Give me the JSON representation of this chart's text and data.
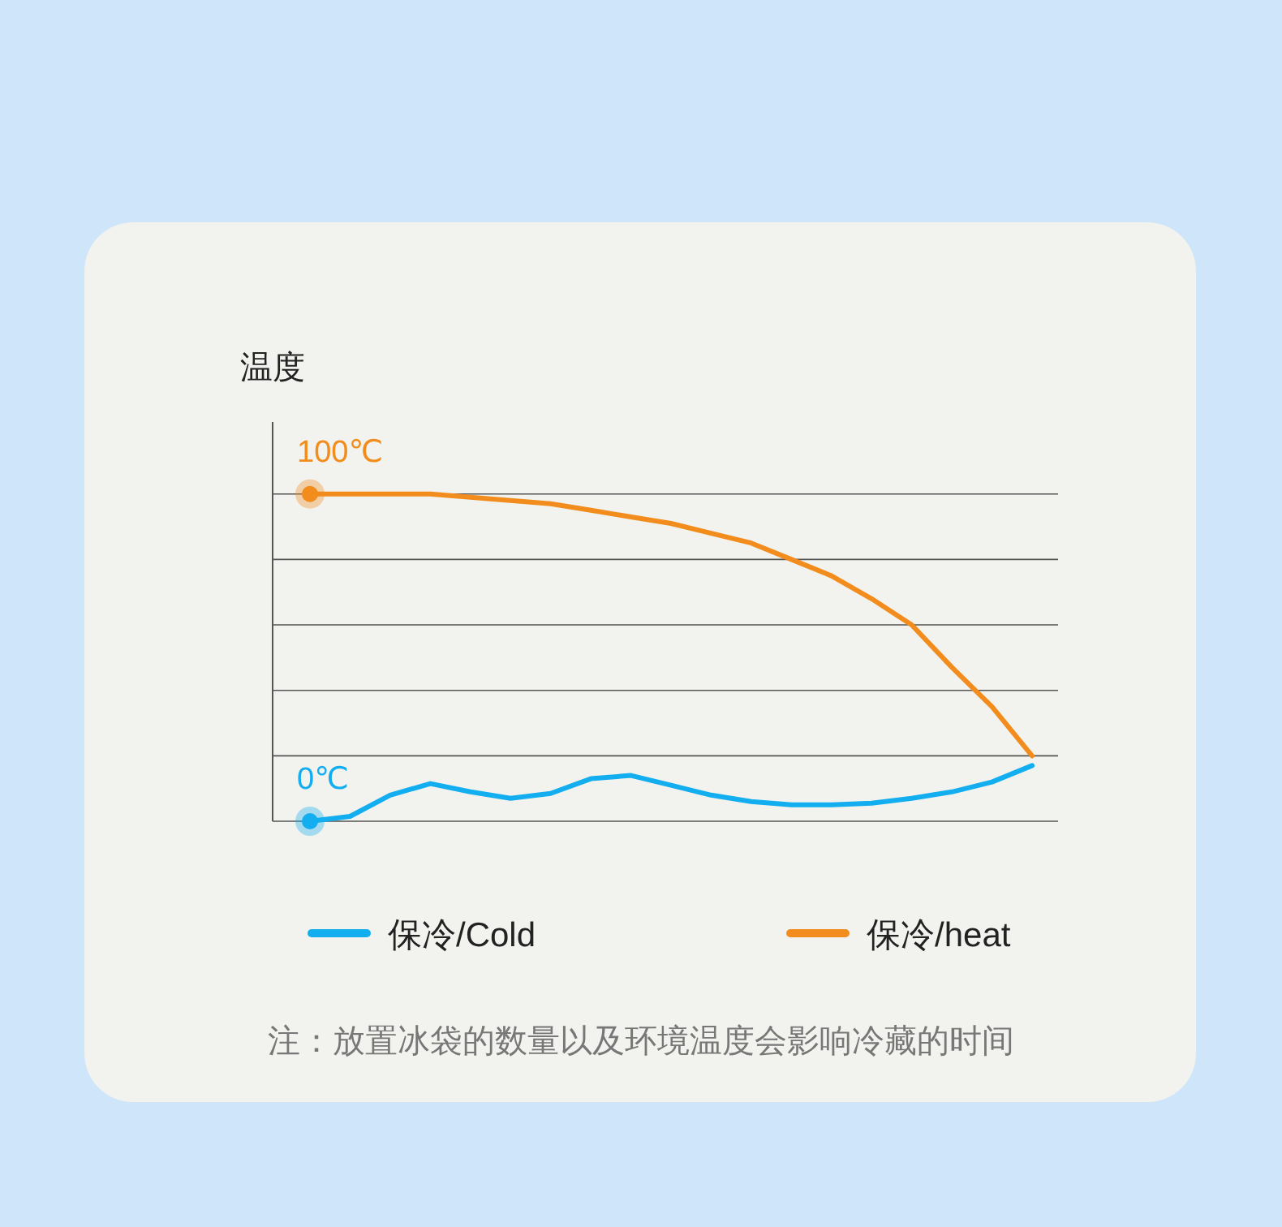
{
  "chart_data": {
    "type": "line",
    "ylabel": "温度",
    "categories": [
      null,
      null,
      null,
      null,
      null,
      null,
      null,
      null,
      null,
      null,
      null,
      null,
      null,
      null,
      null,
      null,
      null,
      null,
      null
    ],
    "series": [
      {
        "name": "保冷/Cold",
        "color": "#12aef0",
        "values": [
          0,
          1.5,
          8,
          11.5,
          9,
          7,
          8.5,
          13,
          14,
          11,
          8,
          6,
          5,
          5,
          5.5,
          7,
          9,
          12,
          17
        ],
        "value_labels": [
          "0℃",
          null,
          null,
          null,
          null,
          null,
          null,
          null,
          null,
          null,
          null,
          null,
          null,
          null,
          null,
          null,
          null,
          null,
          null
        ]
      },
      {
        "name": "保冷/heat",
        "color": "#f28c1c",
        "values": [
          100,
          100,
          100,
          100,
          99,
          98,
          97,
          95,
          93,
          91,
          88,
          85,
          80,
          75,
          68,
          60,
          47,
          35,
          20
        ],
        "value_labels": [
          "100℃",
          null,
          null,
          null,
          null,
          null,
          null,
          null,
          null,
          null,
          null,
          null,
          null,
          null,
          null,
          null,
          null,
          null,
          null
        ]
      }
    ],
    "ylim": [
      0,
      122
    ],
    "yticks": [
      {
        "value": 0,
        "label": null
      },
      {
        "value": 20,
        "label": null
      },
      {
        "value": 40,
        "label": null
      },
      {
        "value": 60,
        "label": null
      },
      {
        "value": 80,
        "label": null
      },
      {
        "value": 100,
        "label": null
      }
    ],
    "grid": "y",
    "legend": "bottom",
    "annotations": [
      "注：放置冰袋的数量以及环境温度会影响冷藏的时间"
    ]
  }
}
